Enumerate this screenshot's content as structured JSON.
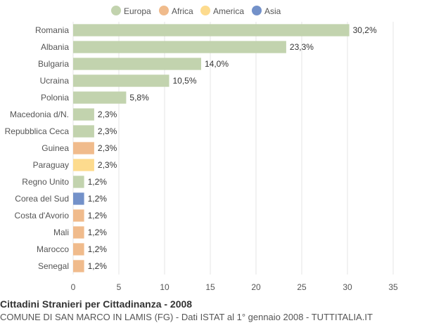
{
  "chart_data": {
    "type": "bar",
    "orientation": "horizontal",
    "title": "Cittadini Stranieri per Cittadinanza - 2008",
    "subtitle": "COMUNE DI SAN MARCO IN LAMIS (FG) - Dati ISTAT al 1° gennaio 2008 - TUTTITALIA.IT",
    "xlim": [
      0,
      35
    ],
    "xticks": [
      0,
      5,
      10,
      15,
      20,
      25,
      30,
      35
    ],
    "grid": true,
    "legend_position": "top-center",
    "legend": [
      {
        "name": "Europa",
        "color": "#c2d3ae"
      },
      {
        "name": "Africa",
        "color": "#f0bb8c"
      },
      {
        "name": "America",
        "color": "#fddb8e"
      },
      {
        "name": "Asia",
        "color": "#7391c9"
      }
    ],
    "bars": [
      {
        "category": "Romania",
        "value": 30.2,
        "label": "30,2%",
        "group": "Europa"
      },
      {
        "category": "Albania",
        "value": 23.3,
        "label": "23,3%",
        "group": "Europa"
      },
      {
        "category": "Bulgaria",
        "value": 14.0,
        "label": "14,0%",
        "group": "Europa"
      },
      {
        "category": "Ucraina",
        "value": 10.5,
        "label": "10,5%",
        "group": "Europa"
      },
      {
        "category": "Polonia",
        "value": 5.8,
        "label": "5,8%",
        "group": "Europa"
      },
      {
        "category": "Macedonia d/N.",
        "value": 2.3,
        "label": "2,3%",
        "group": "Europa"
      },
      {
        "category": "Repubblica Ceca",
        "value": 2.3,
        "label": "2,3%",
        "group": "Europa"
      },
      {
        "category": "Guinea",
        "value": 2.3,
        "label": "2,3%",
        "group": "Africa"
      },
      {
        "category": "Paraguay",
        "value": 2.3,
        "label": "2,3%",
        "group": "America"
      },
      {
        "category": "Regno Unito",
        "value": 1.2,
        "label": "1,2%",
        "group": "Europa"
      },
      {
        "category": "Corea del Sud",
        "value": 1.2,
        "label": "1,2%",
        "group": "Asia"
      },
      {
        "category": "Costa d'Avorio",
        "value": 1.2,
        "label": "1,2%",
        "group": "Africa"
      },
      {
        "category": "Mali",
        "value": 1.2,
        "label": "1,2%",
        "group": "Africa"
      },
      {
        "category": "Marocco",
        "value": 1.2,
        "label": "1,2%",
        "group": "Africa"
      },
      {
        "category": "Senegal",
        "value": 1.2,
        "label": "1,2%",
        "group": "Africa"
      }
    ]
  }
}
